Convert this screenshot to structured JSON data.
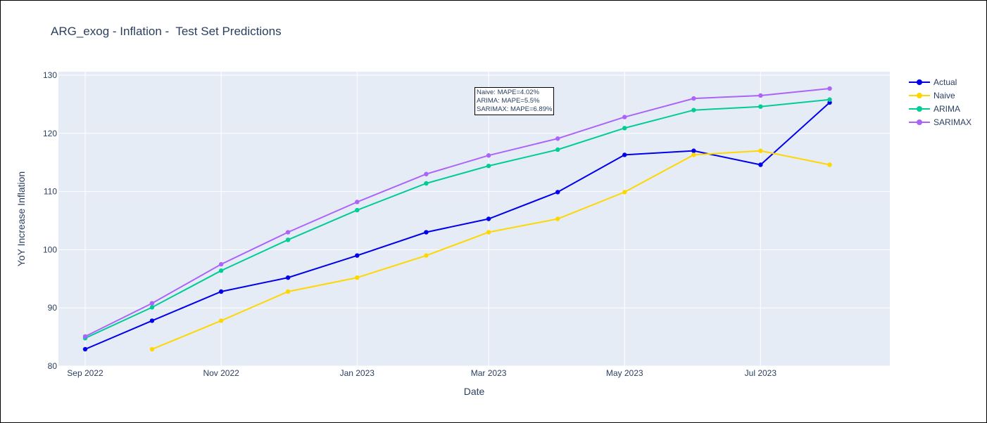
{
  "chart_data": {
    "type": "line",
    "title": "ARG_exog - Inflation -  Test Set Predictions",
    "xlabel": "Date",
    "ylabel": "YoY Increase Inflation",
    "x": [
      "2022-09-01",
      "2022-10-01",
      "2022-11-01",
      "2022-12-01",
      "2023-01-01",
      "2023-02-01",
      "2023-03-01",
      "2023-04-01",
      "2023-05-01",
      "2023-06-01",
      "2023-07-01",
      "2023-08-01"
    ],
    "xticks": [
      "Sep 2022",
      "Nov 2022",
      "Jan 2023",
      "Mar 2023",
      "May 2023",
      "Jul 2023"
    ],
    "xtick_dates": [
      "2022-09-01",
      "2022-11-01",
      "2023-01-01",
      "2023-03-01",
      "2023-05-01",
      "2023-07-01"
    ],
    "yticks": [
      80,
      90,
      100,
      110,
      120,
      130
    ],
    "ylim": [
      80,
      130.6
    ],
    "xlim": [
      "2022-08-20",
      "2023-08-28"
    ],
    "grid": true,
    "legend_position": "top-right",
    "series": [
      {
        "name": "Actual",
        "color": "#0000ee",
        "values": [
          82.9,
          87.8,
          92.8,
          95.2,
          99.0,
          103.0,
          105.3,
          109.9,
          116.3,
          117.0,
          114.6,
          125.3
        ]
      },
      {
        "name": "Naive",
        "color": "#ffd700",
        "values": [
          null,
          82.9,
          87.8,
          92.8,
          95.2,
          99.0,
          103.0,
          105.3,
          109.9,
          116.3,
          117.0,
          114.6
        ]
      },
      {
        "name": "ARIMA",
        "color": "#00cc96",
        "values": [
          84.8,
          90.1,
          96.4,
          101.7,
          106.8,
          111.4,
          114.4,
          117.2,
          120.9,
          124.0,
          124.6,
          125.8
        ]
      },
      {
        "name": "SARIMAX",
        "color": "#ab63fa",
        "values": [
          85.1,
          90.8,
          97.5,
          103.0,
          108.2,
          113.0,
          116.2,
          119.1,
          122.8,
          126.0,
          126.5,
          127.7
        ]
      }
    ],
    "annotation": "Naive: MAPE=4.02%\nARIMA: MAPE=5.5%\nSARIMAX: MAPE=6.89%"
  }
}
